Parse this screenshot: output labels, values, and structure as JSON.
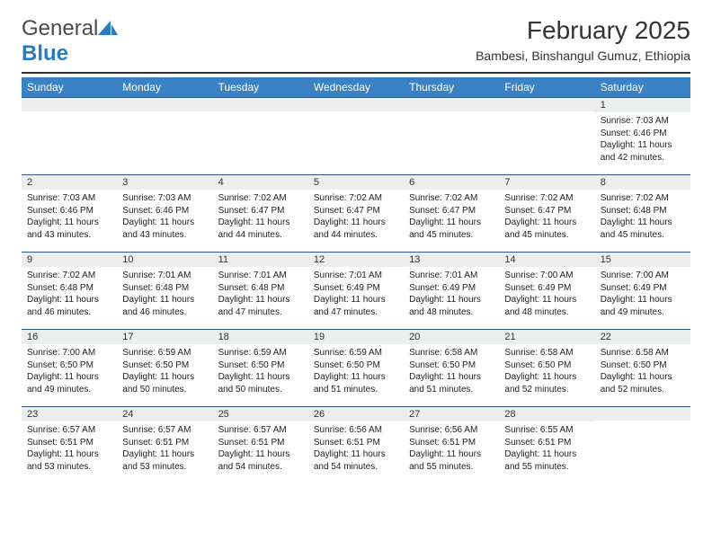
{
  "brand": {
    "name_a": "General",
    "name_b": "Blue"
  },
  "title": "February 2025",
  "location": "Bambesi, Binshangul Gumuz, Ethiopia",
  "colors": {
    "header_bg": "#3b82c4",
    "header_text": "#ffffff",
    "daynum_bg": "#eceded",
    "rule": "#2b5a8a",
    "page_bg": "#ffffff",
    "title_color": "#333333",
    "body_text": "#222222"
  },
  "typography": {
    "title_fontsize": 28,
    "location_fontsize": 14,
    "weekday_fontsize": 12,
    "daynum_fontsize": 11,
    "cell_fontsize": 10
  },
  "weekdays": [
    "Sunday",
    "Monday",
    "Tuesday",
    "Wednesday",
    "Thursday",
    "Friday",
    "Saturday"
  ],
  "weeks": [
    [
      {
        "n": "",
        "sunrise": "",
        "sunset": "",
        "daylight": ""
      },
      {
        "n": "",
        "sunrise": "",
        "sunset": "",
        "daylight": ""
      },
      {
        "n": "",
        "sunrise": "",
        "sunset": "",
        "daylight": ""
      },
      {
        "n": "",
        "sunrise": "",
        "sunset": "",
        "daylight": ""
      },
      {
        "n": "",
        "sunrise": "",
        "sunset": "",
        "daylight": ""
      },
      {
        "n": "",
        "sunrise": "",
        "sunset": "",
        "daylight": ""
      },
      {
        "n": "1",
        "sunrise": "Sunrise: 7:03 AM",
        "sunset": "Sunset: 6:46 PM",
        "daylight": "Daylight: 11 hours and 42 minutes."
      }
    ],
    [
      {
        "n": "2",
        "sunrise": "Sunrise: 7:03 AM",
        "sunset": "Sunset: 6:46 PM",
        "daylight": "Daylight: 11 hours and 43 minutes."
      },
      {
        "n": "3",
        "sunrise": "Sunrise: 7:03 AM",
        "sunset": "Sunset: 6:46 PM",
        "daylight": "Daylight: 11 hours and 43 minutes."
      },
      {
        "n": "4",
        "sunrise": "Sunrise: 7:02 AM",
        "sunset": "Sunset: 6:47 PM",
        "daylight": "Daylight: 11 hours and 44 minutes."
      },
      {
        "n": "5",
        "sunrise": "Sunrise: 7:02 AM",
        "sunset": "Sunset: 6:47 PM",
        "daylight": "Daylight: 11 hours and 44 minutes."
      },
      {
        "n": "6",
        "sunrise": "Sunrise: 7:02 AM",
        "sunset": "Sunset: 6:47 PM",
        "daylight": "Daylight: 11 hours and 45 minutes."
      },
      {
        "n": "7",
        "sunrise": "Sunrise: 7:02 AM",
        "sunset": "Sunset: 6:47 PM",
        "daylight": "Daylight: 11 hours and 45 minutes."
      },
      {
        "n": "8",
        "sunrise": "Sunrise: 7:02 AM",
        "sunset": "Sunset: 6:48 PM",
        "daylight": "Daylight: 11 hours and 45 minutes."
      }
    ],
    [
      {
        "n": "9",
        "sunrise": "Sunrise: 7:02 AM",
        "sunset": "Sunset: 6:48 PM",
        "daylight": "Daylight: 11 hours and 46 minutes."
      },
      {
        "n": "10",
        "sunrise": "Sunrise: 7:01 AM",
        "sunset": "Sunset: 6:48 PM",
        "daylight": "Daylight: 11 hours and 46 minutes."
      },
      {
        "n": "11",
        "sunrise": "Sunrise: 7:01 AM",
        "sunset": "Sunset: 6:48 PM",
        "daylight": "Daylight: 11 hours and 47 minutes."
      },
      {
        "n": "12",
        "sunrise": "Sunrise: 7:01 AM",
        "sunset": "Sunset: 6:49 PM",
        "daylight": "Daylight: 11 hours and 47 minutes."
      },
      {
        "n": "13",
        "sunrise": "Sunrise: 7:01 AM",
        "sunset": "Sunset: 6:49 PM",
        "daylight": "Daylight: 11 hours and 48 minutes."
      },
      {
        "n": "14",
        "sunrise": "Sunrise: 7:00 AM",
        "sunset": "Sunset: 6:49 PM",
        "daylight": "Daylight: 11 hours and 48 minutes."
      },
      {
        "n": "15",
        "sunrise": "Sunrise: 7:00 AM",
        "sunset": "Sunset: 6:49 PM",
        "daylight": "Daylight: 11 hours and 49 minutes."
      }
    ],
    [
      {
        "n": "16",
        "sunrise": "Sunrise: 7:00 AM",
        "sunset": "Sunset: 6:50 PM",
        "daylight": "Daylight: 11 hours and 49 minutes."
      },
      {
        "n": "17",
        "sunrise": "Sunrise: 6:59 AM",
        "sunset": "Sunset: 6:50 PM",
        "daylight": "Daylight: 11 hours and 50 minutes."
      },
      {
        "n": "18",
        "sunrise": "Sunrise: 6:59 AM",
        "sunset": "Sunset: 6:50 PM",
        "daylight": "Daylight: 11 hours and 50 minutes."
      },
      {
        "n": "19",
        "sunrise": "Sunrise: 6:59 AM",
        "sunset": "Sunset: 6:50 PM",
        "daylight": "Daylight: 11 hours and 51 minutes."
      },
      {
        "n": "20",
        "sunrise": "Sunrise: 6:58 AM",
        "sunset": "Sunset: 6:50 PM",
        "daylight": "Daylight: 11 hours and 51 minutes."
      },
      {
        "n": "21",
        "sunrise": "Sunrise: 6:58 AM",
        "sunset": "Sunset: 6:50 PM",
        "daylight": "Daylight: 11 hours and 52 minutes."
      },
      {
        "n": "22",
        "sunrise": "Sunrise: 6:58 AM",
        "sunset": "Sunset: 6:50 PM",
        "daylight": "Daylight: 11 hours and 52 minutes."
      }
    ],
    [
      {
        "n": "23",
        "sunrise": "Sunrise: 6:57 AM",
        "sunset": "Sunset: 6:51 PM",
        "daylight": "Daylight: 11 hours and 53 minutes."
      },
      {
        "n": "24",
        "sunrise": "Sunrise: 6:57 AM",
        "sunset": "Sunset: 6:51 PM",
        "daylight": "Daylight: 11 hours and 53 minutes."
      },
      {
        "n": "25",
        "sunrise": "Sunrise: 6:57 AM",
        "sunset": "Sunset: 6:51 PM",
        "daylight": "Daylight: 11 hours and 54 minutes."
      },
      {
        "n": "26",
        "sunrise": "Sunrise: 6:56 AM",
        "sunset": "Sunset: 6:51 PM",
        "daylight": "Daylight: 11 hours and 54 minutes."
      },
      {
        "n": "27",
        "sunrise": "Sunrise: 6:56 AM",
        "sunset": "Sunset: 6:51 PM",
        "daylight": "Daylight: 11 hours and 55 minutes."
      },
      {
        "n": "28",
        "sunrise": "Sunrise: 6:55 AM",
        "sunset": "Sunset: 6:51 PM",
        "daylight": "Daylight: 11 hours and 55 minutes."
      },
      {
        "n": "",
        "sunrise": "",
        "sunset": "",
        "daylight": ""
      }
    ]
  ]
}
